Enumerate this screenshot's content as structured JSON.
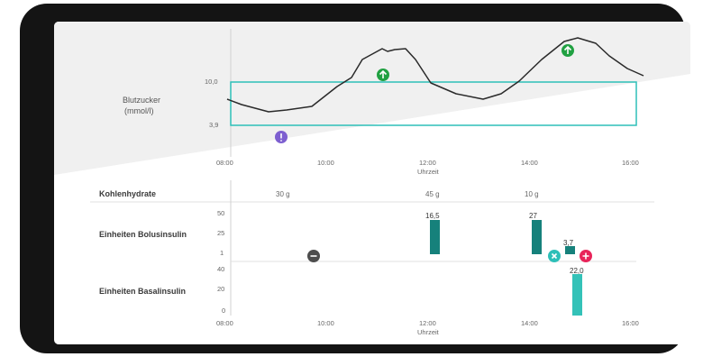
{
  "glucose": {
    "ylabel_line1": "Blutzucker",
    "ylabel_line2": "(mmol/l)",
    "target_upper": "10,0",
    "target_lower": "3,9",
    "curve": [
      [
        -4,
        86
      ],
      [
        12,
        92
      ],
      [
        42,
        100
      ],
      [
        62,
        98
      ],
      [
        90,
        94
      ],
      [
        118,
        72
      ],
      [
        134,
        62
      ],
      [
        146,
        42
      ],
      [
        168,
        30
      ],
      [
        174,
        33
      ],
      [
        182,
        31
      ],
      [
        194,
        30
      ],
      [
        205,
        42
      ],
      [
        222,
        68
      ],
      [
        250,
        80
      ],
      [
        280,
        86
      ],
      [
        300,
        80
      ],
      [
        320,
        66
      ],
      [
        345,
        42
      ],
      [
        370,
        22
      ],
      [
        385,
        18
      ],
      [
        405,
        24
      ],
      [
        420,
        38
      ],
      [
        440,
        52
      ],
      [
        458,
        60
      ]
    ],
    "markers": [
      {
        "icon": "arrow-up-icon",
        "color": "#21a142"
      },
      {
        "icon": "arrow-up-icon",
        "color": "#21a142"
      },
      {
        "icon": "exclamation-icon",
        "color": "#7d5fd0"
      }
    ]
  },
  "time_axis": {
    "ticks": [
      "08:00",
      "10:00",
      "12:00",
      "14:00",
      "16:00"
    ],
    "unit": "Uhrzeit"
  },
  "carbs": {
    "label": "Kohlenhydrate",
    "values": [
      "30 g",
      "45 g",
      "10 g"
    ]
  },
  "bolus": {
    "label": "Einheiten Bolusinsulin",
    "yticks": [
      "50",
      "25",
      "1"
    ],
    "bars": [
      {
        "time": "12:00",
        "value": "16,5",
        "color": "#16817b"
      },
      {
        "time": "14:00",
        "value": "27",
        "color": "#16817b"
      },
      {
        "time": "14:50",
        "value": "3,7",
        "color": "#16817b"
      }
    ],
    "markers": [
      {
        "icon": "minus-icon",
        "color": "#4d4d4d"
      },
      {
        "icon": "close-icon",
        "color": "#2ebfb8"
      },
      {
        "icon": "plus-icon",
        "color": "#e8245a"
      }
    ]
  },
  "basal": {
    "label": "Einheiten Basalinsulin",
    "yticks": [
      "40",
      "20",
      "0"
    ],
    "bars": [
      {
        "time": "14:45",
        "value": "22,0",
        "color": "#34c2b8"
      }
    ]
  },
  "colors": {
    "curve": "#2a2a2a",
    "target_box": "#2ebfb8",
    "background_shade": "#f0f0f0"
  }
}
